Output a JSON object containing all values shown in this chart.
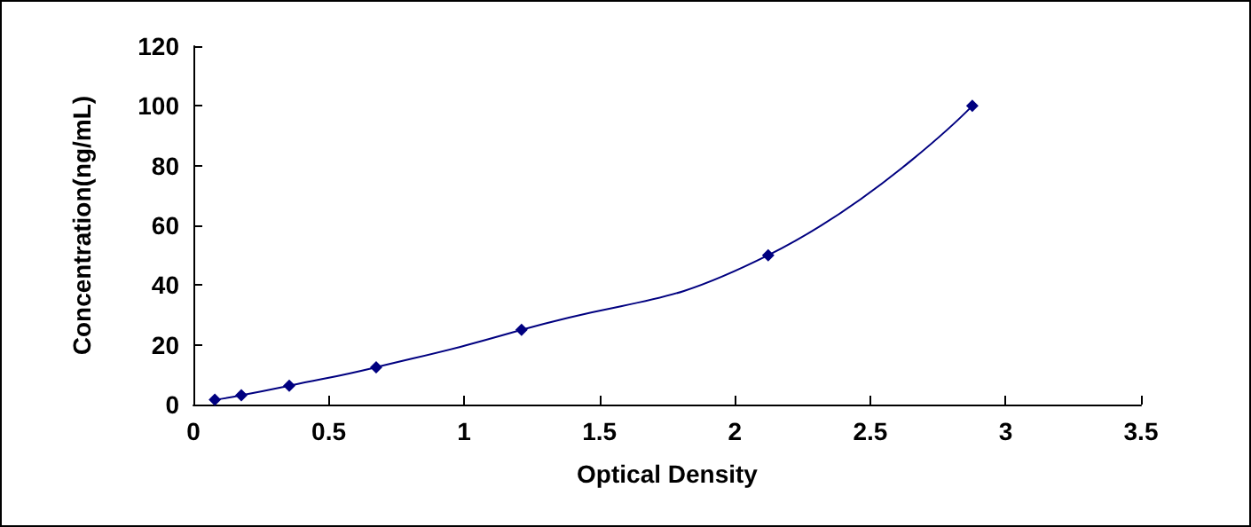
{
  "chart_data": {
    "type": "line",
    "xlabel": "Optical Density",
    "ylabel": "Concentration(ng/mL)",
    "x": [
      0.079,
      0.177,
      0.354,
      0.675,
      1.212,
      2.123,
      2.877
    ],
    "series": [
      {
        "color": "#000080",
        "values": [
          1.6,
          3.1,
          6.3,
          12.5,
          25,
          50,
          100
        ]
      }
    ],
    "xlim": [
      0,
      3.5
    ],
    "xticks": [
      0,
      0.5,
      1,
      1.5,
      2,
      2.5,
      3,
      3.5
    ],
    "ylim": [
      0,
      120
    ],
    "yticks": [
      0,
      20,
      40,
      60,
      80,
      100,
      120
    ],
    "grid": false,
    "marker": "diamond",
    "line_style": "solid"
  }
}
